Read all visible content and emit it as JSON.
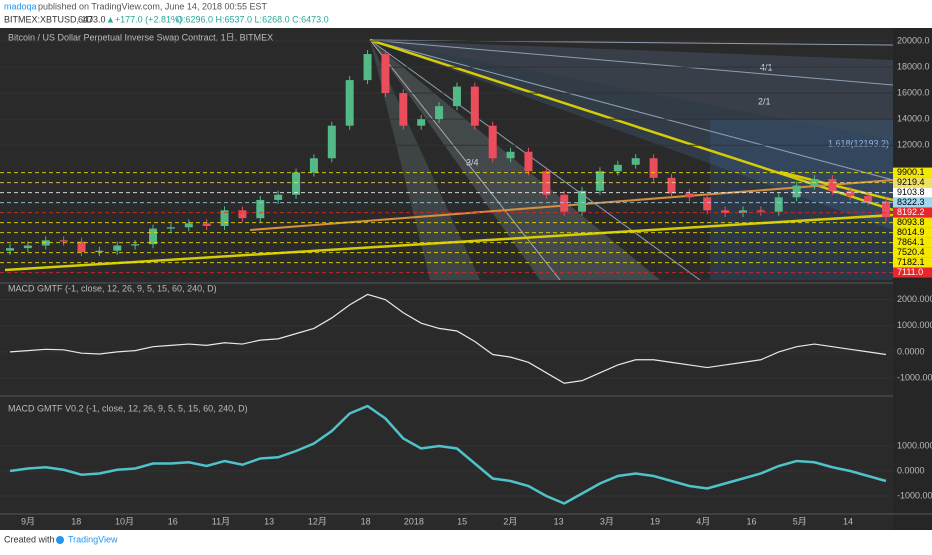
{
  "header": {
    "publisher": "madoqa",
    "published": "published on TradingView.com, June 14, 2018 00:55 EST",
    "symbol": "BITMEX:XBTUSD, 1D",
    "last": "6473.0",
    "change": "▲+177.0 (+2.81%)",
    "ohlc": "O:6296.0 H:6537.0 L:6268.0 C:6473.0"
  },
  "chart_data": [
    {
      "type": "candlestick",
      "title": "Bitcoin / US Dollar Perpetual Inverse Swap Contract, 1日, BITMEX",
      "open": 3900,
      "close": [
        4100,
        4300,
        4700,
        4600,
        3800,
        3900,
        4300,
        4400,
        5600,
        5700,
        6000,
        5800,
        7000,
        6400,
        7800,
        8200,
        9900,
        11000,
        13500,
        17000,
        19000,
        16000,
        13500,
        14000,
        15000,
        16500,
        13500,
        11000,
        11500,
        10000,
        8200,
        6900,
        8500,
        10000,
        10500,
        11000,
        9500,
        8300,
        8000,
        7000,
        6800,
        7000,
        6900,
        8000,
        8900,
        9400,
        8500,
        8100,
        7700,
        6473
      ],
      "up_color": "#53b987",
      "down_color": "#eb4d5c",
      "ylim": [
        1500,
        21000
      ],
      "yticks": [
        {
          "value": 20000,
          "label": "20000.0"
        },
        {
          "value": 18000,
          "label": "18000.0"
        },
        {
          "value": 16000,
          "label": "16000.0"
        },
        {
          "value": 14000,
          "label": "14000.0"
        },
        {
          "value": 12000,
          "label": "12000.0"
        }
      ],
      "price_levels": [
        {
          "value": 9900.1,
          "label": "9900.1",
          "color": "#f5e900"
        },
        {
          "value": 9219.4,
          "label": "9219.4",
          "color": "#f0e060"
        },
        {
          "value": 9103.8,
          "label": "9103.8",
          "color": "#ffffff"
        },
        {
          "value": 8322.3,
          "label": "8322.3",
          "color": "#9fd6f0"
        },
        {
          "value": 8192.2,
          "label": "8192.2",
          "color": "#e8262b"
        },
        {
          "value": 8093.8,
          "label": "8093.8",
          "color": "#f5e900"
        },
        {
          "value": 8014.9,
          "label": "8014.9",
          "color": "#f5e900"
        },
        {
          "value": 7864.1,
          "label": "7864.1",
          "color": "#f5e900"
        },
        {
          "value": 7520.4,
          "label": "7520.4",
          "color": "#f5e900"
        },
        {
          "value": 7182.1,
          "label": "7182.1",
          "color": "#f5e900"
        },
        {
          "value": 7111.0,
          "label": "7111.0",
          "color": "#e8262b"
        }
      ],
      "annotations": [
        "4/1",
        "2/1",
        "3/4",
        "1.618(12193.2)"
      ],
      "categories": [
        "9月",
        "18",
        "10月",
        "16",
        "11月",
        "13",
        "12月",
        "18",
        "2018",
        "15",
        "2月",
        "13",
        "3月",
        "19",
        "4月",
        "16",
        "5月",
        "14"
      ]
    },
    {
      "type": "line",
      "title": "MACD GMTF (-1, close, 12, 26, 9, 5, 15, 60, 240, D)",
      "color": "#e8e8e8",
      "values": [
        0,
        50,
        100,
        80,
        -50,
        -80,
        0,
        50,
        200,
        250,
        300,
        250,
        350,
        300,
        450,
        500,
        700,
        900,
        1300,
        1800,
        2200,
        2000,
        1500,
        1100,
        900,
        800,
        400,
        -100,
        -200,
        -400,
        -800,
        -1200,
        -1100,
        -800,
        -500,
        -300,
        -300,
        -400,
        -500,
        -600,
        -500,
        -400,
        -300,
        0,
        200,
        300,
        200,
        100,
        0,
        -100
      ],
      "ylim": [
        -1650,
        2600
      ],
      "yticks": [
        {
          "value": 2000,
          "label": "2000.0000"
        },
        {
          "value": 1000,
          "label": "1000.0000"
        },
        {
          "value": 0,
          "label": "0.0000"
        },
        {
          "value": -1000,
          "label": "-1000.0000"
        }
      ]
    },
    {
      "type": "line",
      "title": "MACD GMTF V0.2 (-1, close, 12, 26, 9, 5, 5, 15, 60, 240, D)",
      "color": "#4fc3c9",
      "values": [
        0,
        100,
        150,
        50,
        -150,
        -100,
        50,
        100,
        300,
        300,
        350,
        200,
        400,
        250,
        500,
        550,
        800,
        1100,
        1600,
        2300,
        2600,
        2100,
        1300,
        900,
        1000,
        900,
        300,
        -300,
        -400,
        -600,
        -1000,
        -1300,
        -900,
        -500,
        -200,
        -100,
        -200,
        -400,
        -600,
        -700,
        -500,
        -300,
        -100,
        200,
        400,
        350,
        150,
        0,
        -200,
        -400
      ],
      "ylim": [
        -1680,
        2960
      ],
      "yticks": [
        {
          "value": 1000,
          "label": "1000.0000"
        },
        {
          "value": 0,
          "label": "0.0000"
        },
        {
          "value": -1000,
          "label": "-1000.0000"
        }
      ]
    }
  ],
  "footer": {
    "created": "Created with",
    "brand": "TradingView"
  }
}
